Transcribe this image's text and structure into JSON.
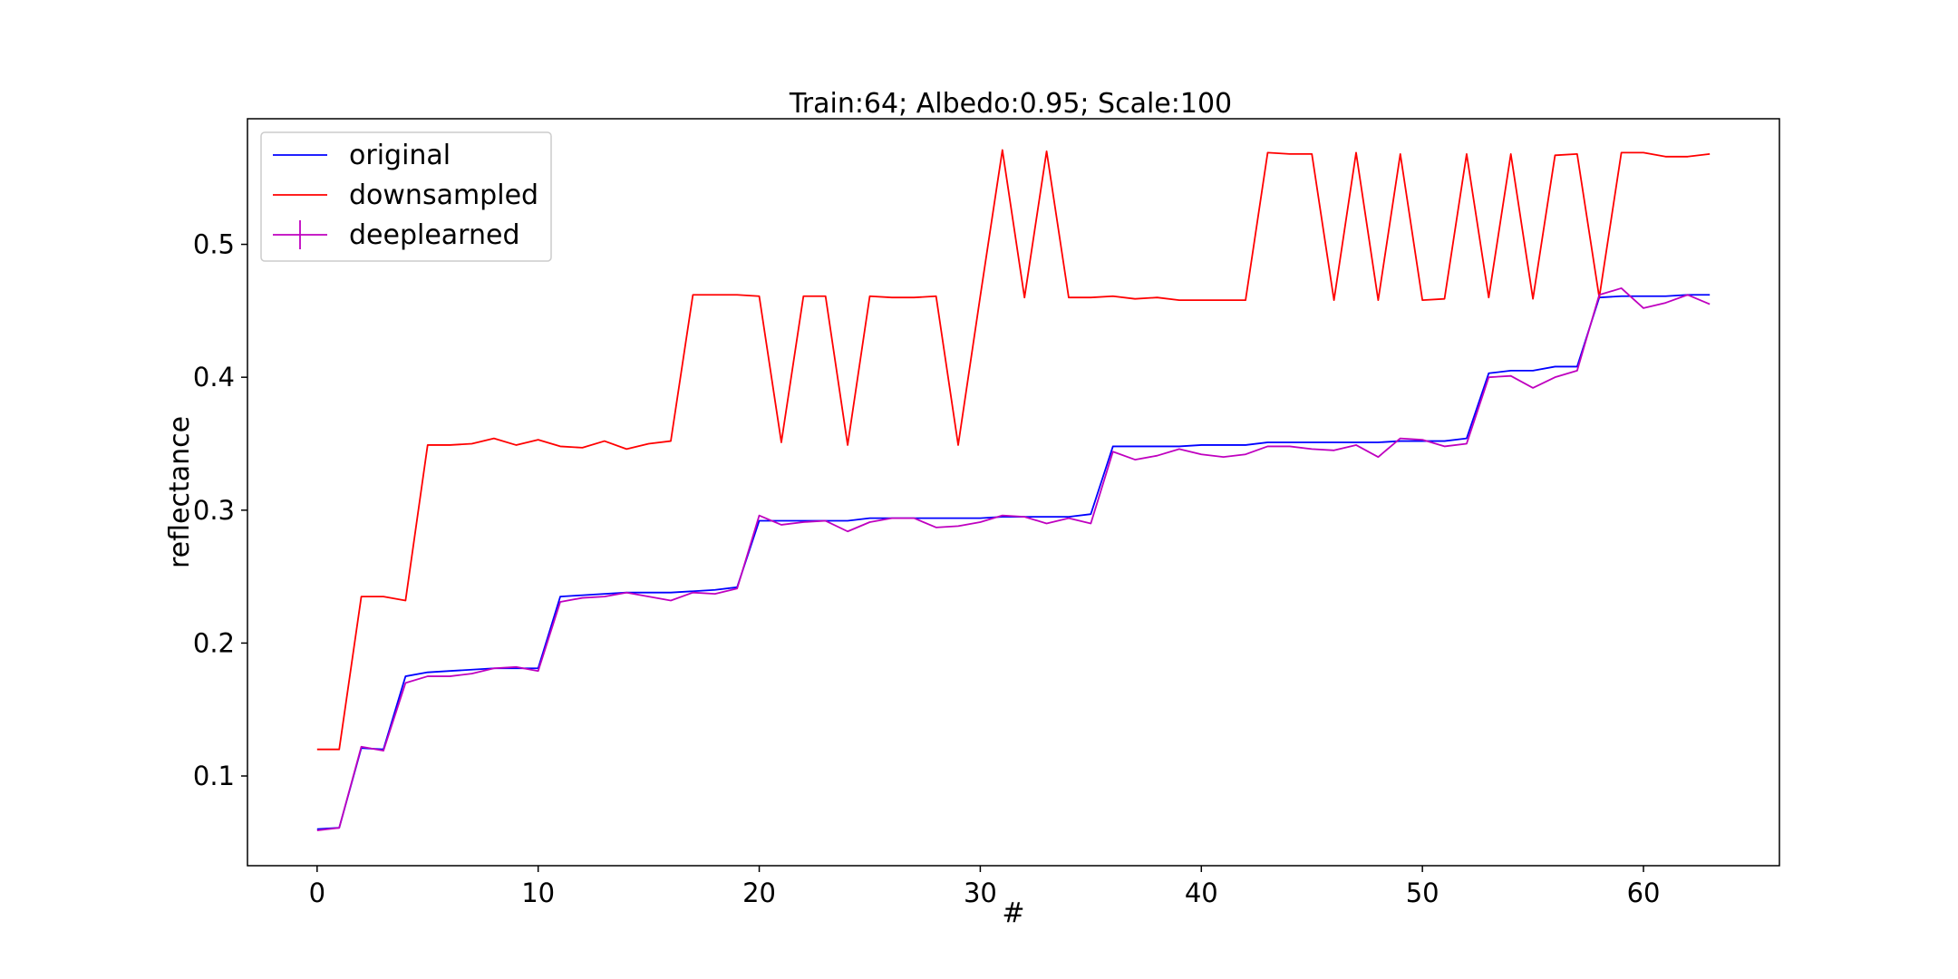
{
  "chart_data": {
    "type": "line",
    "title": "Train:64; Albedo:0.95; Scale:100",
    "xlabel": "#",
    "ylabel": "reflectance",
    "xlim": [
      -3.15,
      66.15
    ],
    "ylim": [
      0.0325,
      0.5945
    ],
    "xticks": [
      0,
      10,
      20,
      30,
      40,
      50,
      60
    ],
    "yticks": [
      0.1,
      0.2,
      0.3,
      0.4,
      0.5
    ],
    "xtick_labels": [
      "0",
      "10",
      "20",
      "30",
      "40",
      "50",
      "60"
    ],
    "ytick_labels": [
      "0.1",
      "0.2",
      "0.3",
      "0.4",
      "0.5"
    ],
    "grid": false,
    "legend_position": "top-left",
    "series": [
      {
        "name": "original",
        "color": "#0000ff",
        "x": [
          0,
          1,
          2,
          3,
          4,
          5,
          6,
          7,
          8,
          9,
          10,
          11,
          12,
          13,
          14,
          15,
          16,
          17,
          18,
          19,
          20,
          21,
          22,
          23,
          24,
          25,
          26,
          27,
          28,
          29,
          30,
          31,
          32,
          33,
          34,
          35,
          36,
          37,
          38,
          39,
          40,
          41,
          42,
          43,
          44,
          45,
          46,
          47,
          48,
          49,
          50,
          51,
          52,
          53,
          54,
          55,
          56,
          57,
          58,
          59,
          60,
          61,
          62,
          63
        ],
        "y": [
          0.06,
          0.061,
          0.121,
          0.12,
          0.175,
          0.178,
          0.179,
          0.18,
          0.181,
          0.181,
          0.181,
          0.235,
          0.236,
          0.237,
          0.238,
          0.238,
          0.238,
          0.239,
          0.24,
          0.242,
          0.292,
          0.292,
          0.292,
          0.292,
          0.292,
          0.294,
          0.294,
          0.294,
          0.294,
          0.294,
          0.294,
          0.295,
          0.295,
          0.295,
          0.295,
          0.297,
          0.348,
          0.348,
          0.348,
          0.348,
          0.349,
          0.349,
          0.349,
          0.351,
          0.351,
          0.351,
          0.351,
          0.351,
          0.351,
          0.352,
          0.352,
          0.352,
          0.354,
          0.403,
          0.405,
          0.405,
          0.408,
          0.408,
          0.46,
          0.461,
          0.461,
          0.461,
          0.462,
          0.462
        ]
      },
      {
        "name": "downsampled",
        "color": "#ff0000",
        "x": [
          0,
          1,
          2,
          3,
          4,
          5,
          6,
          7,
          8,
          9,
          10,
          11,
          12,
          13,
          14,
          15,
          16,
          17,
          18,
          19,
          20,
          21,
          22,
          23,
          24,
          25,
          26,
          27,
          28,
          29,
          30,
          31,
          32,
          33,
          34,
          35,
          36,
          37,
          38,
          39,
          40,
          41,
          42,
          43,
          44,
          45,
          46,
          47,
          48,
          49,
          50,
          51,
          52,
          53,
          54,
          55,
          56,
          57,
          58,
          59,
          60,
          61,
          62,
          63
        ],
        "y": [
          0.12,
          0.12,
          0.235,
          0.235,
          0.232,
          0.349,
          0.349,
          0.35,
          0.354,
          0.349,
          0.353,
          0.348,
          0.347,
          0.352,
          0.346,
          0.35,
          0.352,
          0.462,
          0.462,
          0.462,
          0.461,
          0.351,
          0.461,
          0.461,
          0.349,
          0.461,
          0.46,
          0.46,
          0.461,
          0.349,
          0.461,
          0.571,
          0.46,
          0.57,
          0.46,
          0.46,
          0.461,
          0.459,
          0.46,
          0.458,
          0.458,
          0.458,
          0.458,
          0.569,
          0.568,
          0.568,
          0.458,
          0.569,
          0.458,
          0.568,
          0.458,
          0.459,
          0.568,
          0.46,
          0.568,
          0.459,
          0.567,
          0.568,
          0.46,
          0.569,
          0.569,
          0.566,
          0.566,
          0.568
        ]
      },
      {
        "name": "deeplearned",
        "color": "#bf00bf",
        "x": [
          0,
          1,
          2,
          3,
          4,
          5,
          6,
          7,
          8,
          9,
          10,
          11,
          12,
          13,
          14,
          15,
          16,
          17,
          18,
          19,
          20,
          21,
          22,
          23,
          24,
          25,
          26,
          27,
          28,
          29,
          30,
          31,
          32,
          33,
          34,
          35,
          36,
          37,
          38,
          39,
          40,
          41,
          42,
          43,
          44,
          45,
          46,
          47,
          48,
          49,
          50,
          51,
          52,
          53,
          54,
          55,
          56,
          57,
          58,
          59,
          60,
          61,
          62,
          63
        ],
        "y": [
          0.059,
          0.061,
          0.122,
          0.119,
          0.17,
          0.175,
          0.175,
          0.177,
          0.181,
          0.182,
          0.179,
          0.231,
          0.234,
          0.235,
          0.238,
          0.235,
          0.232,
          0.238,
          0.237,
          0.241,
          0.296,
          0.289,
          0.291,
          0.292,
          0.284,
          0.291,
          0.294,
          0.294,
          0.287,
          0.288,
          0.291,
          0.296,
          0.295,
          0.29,
          0.294,
          0.29,
          0.344,
          0.338,
          0.341,
          0.346,
          0.342,
          0.34,
          0.342,
          0.348,
          0.348,
          0.346,
          0.345,
          0.349,
          0.34,
          0.354,
          0.353,
          0.348,
          0.35,
          0.4,
          0.401,
          0.392,
          0.4,
          0.405,
          0.462,
          0.467,
          0.452,
          0.456,
          0.462,
          0.455
        ]
      }
    ]
  }
}
